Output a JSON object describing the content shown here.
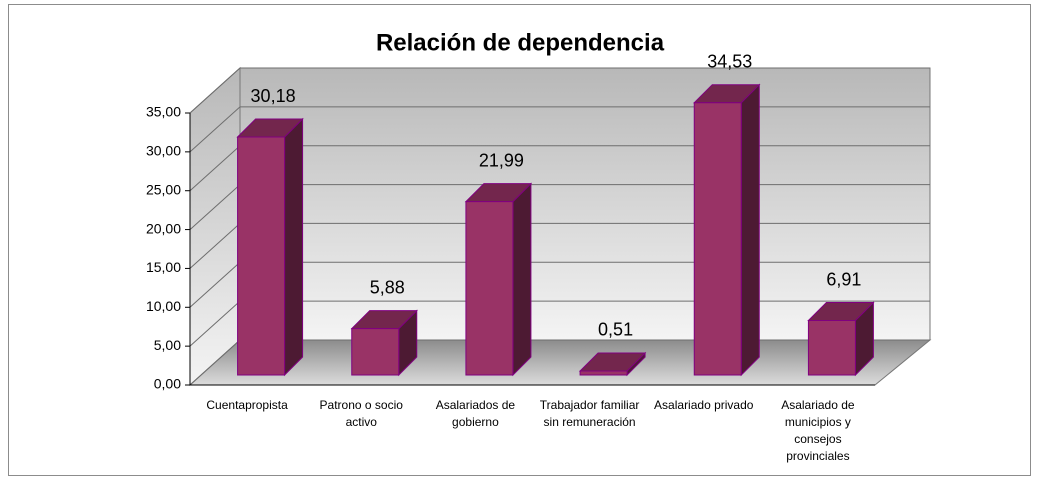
{
  "chart_data": {
    "type": "bar3d",
    "title": "Relación de dependencia",
    "categories": [
      "Cuentapropista",
      "Patrono o socio activo",
      "Asalariados de gobierno",
      "Trabajador familiar sin remuneración",
      "Asalariado privado",
      "Asalariado de municipios y consejos provinciales"
    ],
    "values": [
      30.18,
      5.88,
      21.99,
      0.51,
      34.53,
      6.91
    ],
    "value_labels": [
      "30,18",
      "5,88",
      "21,99",
      "0,51",
      "34,53",
      "6,91"
    ],
    "color": "#993366",
    "ylim": [
      0,
      35
    ],
    "yticks": [
      {
        "value": 0,
        "label": "0,00"
      },
      {
        "value": 5,
        "label": "5,00"
      },
      {
        "value": 10,
        "label": "10,00"
      },
      {
        "value": 15,
        "label": "15,00"
      },
      {
        "value": 20,
        "label": "20,00"
      },
      {
        "value": 25,
        "label": "25,00"
      },
      {
        "value": 30,
        "label": "30,00"
      },
      {
        "value": 35,
        "label": "35,00"
      }
    ],
    "grid": true
  }
}
